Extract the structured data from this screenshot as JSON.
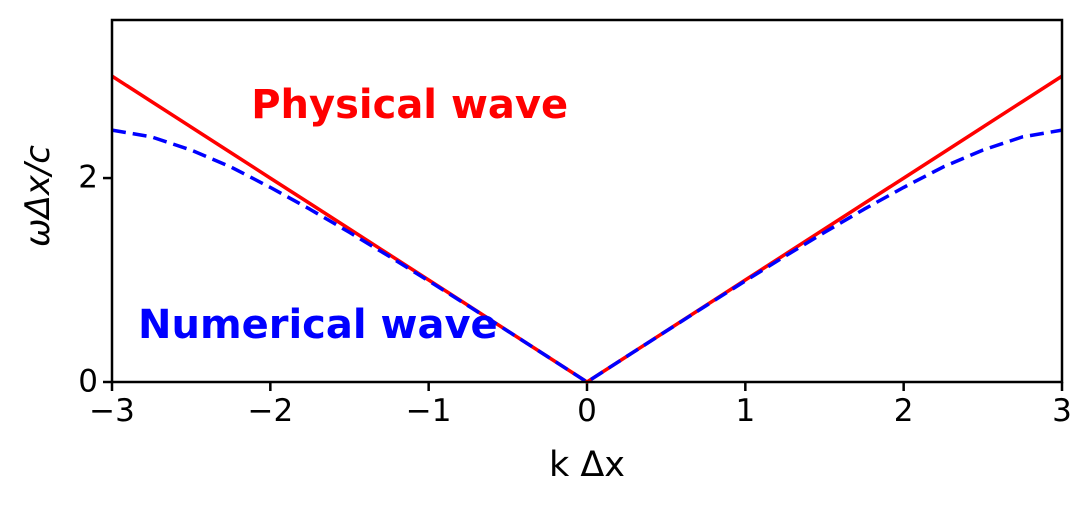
{
  "chart_data": {
    "type": "line",
    "title": "",
    "xlabel": "k Δx",
    "ylabel": "ωΔx/c",
    "xlim": [
      -3,
      3
    ],
    "ylim": [
      0,
      3.55
    ],
    "grid": false,
    "legend": "none (in-plot text annotations)",
    "xticks": {
      "values": [
        -3,
        -2,
        -1,
        0,
        1,
        2,
        3
      ],
      "labels": [
        "−3",
        "−2",
        "−1",
        "0",
        "1",
        "2",
        "3"
      ]
    },
    "yticks": {
      "values": [
        0,
        2
      ],
      "labels": [
        "0",
        "2"
      ]
    },
    "x": [
      -3,
      -2.75,
      -2.5,
      -2.25,
      -2,
      -1.75,
      -1.5,
      -1.25,
      -1,
      -0.75,
      -0.5,
      -0.25,
      0,
      0.25,
      0.5,
      0.75,
      1,
      1.25,
      1.5,
      1.75,
      2,
      2.25,
      2.5,
      2.75,
      3
    ],
    "series": [
      {
        "name": "Physical wave",
        "color": "#ff0000",
        "style": "solid",
        "values": [
          3,
          2.75,
          2.5,
          2.25,
          2,
          1.75,
          1.5,
          1.25,
          1,
          0.75,
          0.5,
          0.25,
          0,
          0.25,
          0.5,
          0.75,
          1,
          1.25,
          1.5,
          1.75,
          2,
          2.25,
          2.5,
          2.75,
          3
        ]
      },
      {
        "name": "Numerical wave",
        "color": "#0000ff",
        "style": "dashed",
        "values": [
          2.47,
          2.404,
          2.274,
          2.109,
          1.908,
          1.695,
          1.467,
          1.233,
          0.991,
          0.746,
          0.499,
          0.25,
          0,
          0.25,
          0.499,
          0.746,
          0.991,
          1.233,
          1.467,
          1.695,
          1.908,
          2.109,
          2.274,
          2.404,
          2.47
        ]
      }
    ],
    "annotations": [
      {
        "text": "Physical wave",
        "color": "#ff0000",
        "x": -1.12,
        "y": 2.72
      },
      {
        "text": "Numerical wave",
        "color": "#0000ff",
        "x": -1.7,
        "y": 0.56
      }
    ]
  }
}
